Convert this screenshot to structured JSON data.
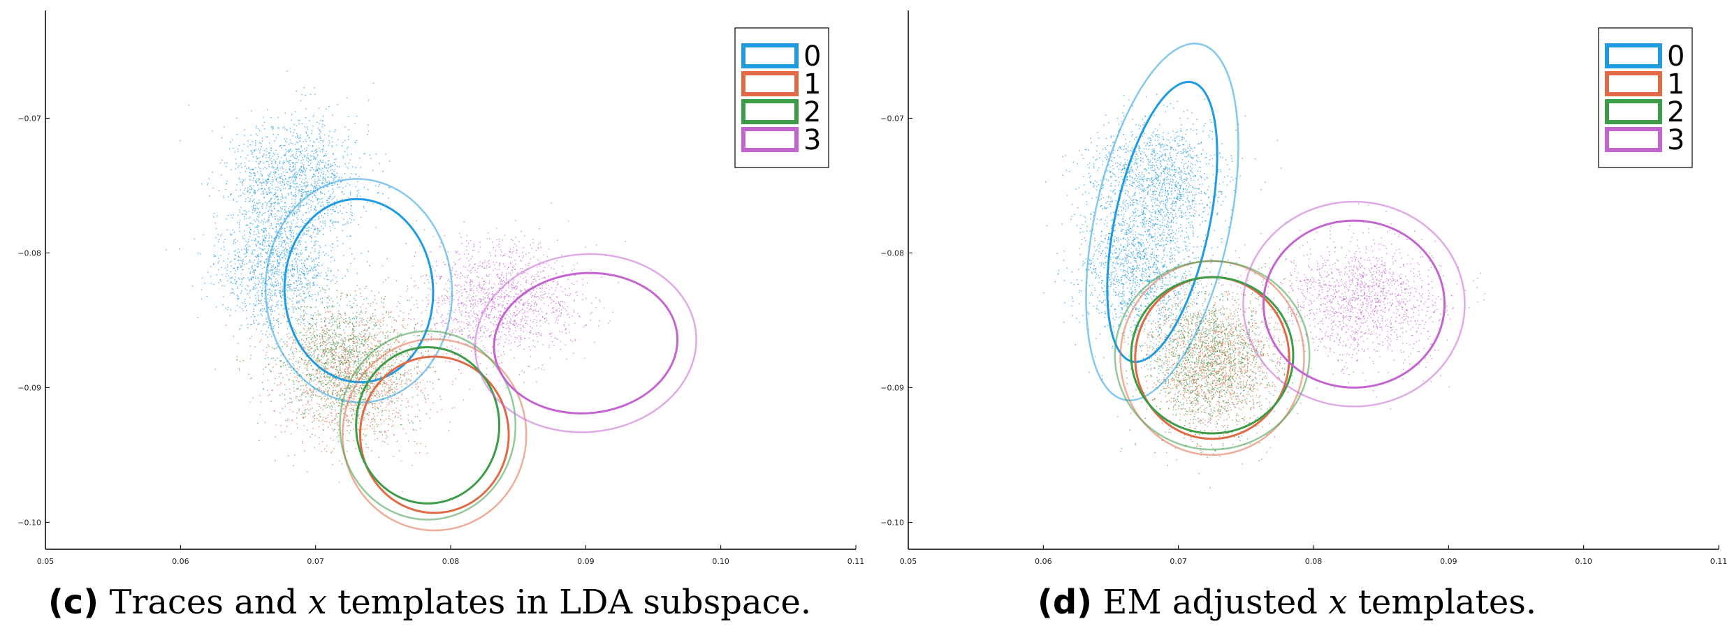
{
  "chart_data": [
    {
      "type": "scatter",
      "panel": "(c)",
      "caption": {
        "tag": "(c)",
        "pre": "Traces and",
        "math": "x",
        "post": "templates in LDA subspace."
      },
      "xlim": [
        0.05,
        0.11
      ],
      "ylim": [
        -0.102,
        -0.062
      ],
      "xticks": [
        0.05,
        0.06,
        0.07,
        0.08,
        0.09,
        0.1,
        0.11
      ],
      "xtick_labels": [
        "0.05",
        "0.06",
        "0.07",
        "0.08",
        "0.09",
        "0.10",
        "0.11"
      ],
      "yticks": [
        -0.07,
        -0.08,
        -0.09,
        -0.1
      ],
      "ytick_labels": [
        "−0.07",
        "−0.08",
        "−0.09",
        "−0.10"
      ],
      "grid": false,
      "legend_position": "top-right",
      "series": [
        {
          "name": "0",
          "color": "#1f9be3",
          "clusters": [
            {
              "center": [
                0.0685,
                -0.0745
              ],
              "sd": [
                0.0025,
                0.0022
              ]
            },
            {
              "center": [
                0.067,
                -0.081
              ],
              "sd": [
                0.0022,
                0.0025
              ]
            }
          ],
          "ellipses": [
            {
              "center": [
                0.0732,
                -0.0828
              ],
              "radii": [
                0.0055,
                0.0068
              ],
              "angle": -3
            },
            {
              "center": [
                0.0732,
                -0.0828
              ],
              "radii": [
                0.0069,
                0.0083
              ],
              "angle": -3
            }
          ]
        },
        {
          "name": "1",
          "color": "#e06a45",
          "clusters": [
            {
              "center": [
                0.0725,
                -0.089
              ],
              "sd": [
                0.0028,
                0.0025
              ]
            }
          ],
          "ellipses": [
            {
              "center": [
                0.0788,
                -0.0935
              ],
              "radii": [
                0.0055,
                0.0058
              ],
              "angle": 0
            },
            {
              "center": [
                0.0788,
                -0.0935
              ],
              "radii": [
                0.0068,
                0.0071
              ],
              "angle": 0
            }
          ]
        },
        {
          "name": "2",
          "color": "#3d9c48",
          "clusters": [
            {
              "center": [
                0.0722,
                -0.088
              ],
              "sd": [
                0.0026,
                0.0026
              ]
            }
          ],
          "ellipses": [
            {
              "center": [
                0.0783,
                -0.0928
              ],
              "radii": [
                0.0053,
                0.0058
              ],
              "angle": 0
            },
            {
              "center": [
                0.0783,
                -0.0928
              ],
              "radii": [
                0.0065,
                0.007
              ],
              "angle": 0
            }
          ]
        },
        {
          "name": "3",
          "color": "#c464d1",
          "clusters": [
            {
              "center": [
                0.0835,
                -0.0835
              ],
              "sd": [
                0.003,
                0.0022
              ]
            }
          ],
          "ellipses": [
            {
              "center": [
                0.09,
                -0.0867
              ],
              "radii": [
                0.0068,
                0.0052
              ],
              "angle": -5
            },
            {
              "center": [
                0.09,
                -0.0867
              ],
              "radii": [
                0.0082,
                0.0066
              ],
              "angle": -5
            }
          ]
        }
      ]
    },
    {
      "type": "scatter",
      "panel": "(d)",
      "caption": {
        "tag": "(d)",
        "pre": "EM adjusted",
        "math": "x",
        "post": "templates."
      },
      "xlim": [
        0.05,
        0.11
      ],
      "ylim": [
        -0.102,
        -0.062
      ],
      "xticks": [
        0.05,
        0.06,
        0.07,
        0.08,
        0.09,
        0.1,
        0.11
      ],
      "xtick_labels": [
        "0.05",
        "0.06",
        "0.07",
        "0.08",
        "0.09",
        "0.10",
        "0.11"
      ],
      "yticks": [
        -0.07,
        -0.08,
        -0.09,
        -0.1
      ],
      "ytick_labels": [
        "−0.07",
        "−0.08",
        "−0.09",
        "−0.10"
      ],
      "grid": false,
      "legend_position": "top-right",
      "series": [
        {
          "name": "0",
          "color": "#1f9be3",
          "clusters": [
            {
              "center": [
                0.0685,
                -0.0745
              ],
              "sd": [
                0.0025,
                0.0022
              ]
            },
            {
              "center": [
                0.067,
                -0.081
              ],
              "sd": [
                0.0022,
                0.0025
              ]
            }
          ],
          "ellipses": [
            {
              "center": [
                0.0688,
                -0.0777
              ],
              "radii": [
                0.0035,
                0.0106
              ],
              "angle": 12
            },
            {
              "center": [
                0.0688,
                -0.0777
              ],
              "radii": [
                0.005,
                0.0135
              ],
              "angle": 12
            }
          ]
        },
        {
          "name": "1",
          "color": "#e06a45",
          "clusters": [
            {
              "center": [
                0.0725,
                -0.088
              ],
              "sd": [
                0.0024,
                0.0026
              ]
            }
          ],
          "ellipses": [
            {
              "center": [
                0.0725,
                -0.0878
              ],
              "radii": [
                0.0057,
                0.006
              ],
              "angle": 0
            },
            {
              "center": [
                0.0725,
                -0.0878
              ],
              "radii": [
                0.0068,
                0.0072
              ],
              "angle": 0
            }
          ]
        },
        {
          "name": "2",
          "color": "#3d9c48",
          "clusters": [
            {
              "center": [
                0.0722,
                -0.088
              ],
              "sd": [
                0.0024,
                0.0025
              ]
            }
          ],
          "ellipses": [
            {
              "center": [
                0.0725,
                -0.0876
              ],
              "radii": [
                0.006,
                0.0058
              ],
              "angle": 0
            },
            {
              "center": [
                0.0725,
                -0.0876
              ],
              "radii": [
                0.0072,
                0.007
              ],
              "angle": 0
            }
          ]
        },
        {
          "name": "3",
          "color": "#c464d1",
          "clusters": [
            {
              "center": [
                0.0835,
                -0.0835
              ],
              "sd": [
                0.003,
                0.0022
              ]
            }
          ],
          "ellipses": [
            {
              "center": [
                0.083,
                -0.0838
              ],
              "radii": [
                0.0067,
                0.0062
              ],
              "angle": 0
            },
            {
              "center": [
                0.083,
                -0.0838
              ],
              "radii": [
                0.0082,
                0.0076
              ],
              "angle": 0
            }
          ]
        }
      ]
    }
  ]
}
